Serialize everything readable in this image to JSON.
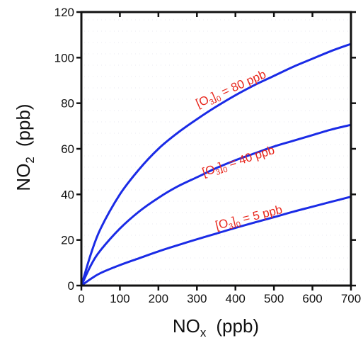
{
  "chart_data": {
    "type": "line",
    "xlabel": {
      "main": "NO",
      "sub": "x",
      "unit": "(ppb)"
    },
    "ylabel": {
      "main": "NO",
      "sub": "2",
      "unit": "(ppb)"
    },
    "xlim": [
      0,
      700
    ],
    "ylim": [
      0,
      120
    ],
    "x_ticks": [
      0,
      100,
      200,
      300,
      400,
      500,
      600,
      700
    ],
    "y_ticks": [
      0,
      20,
      40,
      60,
      80,
      100,
      120
    ],
    "grid": false,
    "series": [
      {
        "name": "[O3]0 = 80 ppb",
        "label_parts": {
          "open": "[O",
          "sub1": "3",
          "close": "]",
          "sub2": "0",
          "rest": " = 80 ppb"
        },
        "color": "#1a2be6",
        "x": [
          0,
          25,
          50,
          100,
          150,
          200,
          250,
          300,
          350,
          400,
          450,
          500,
          550,
          600,
          650,
          700
        ],
        "y": [
          0,
          14,
          25,
          40,
          51,
          60,
          67,
          73,
          78.5,
          83.5,
          88,
          92,
          96,
          99.5,
          103,
          106
        ]
      },
      {
        "name": "[O3]0 = 40 ppb",
        "label_parts": {
          "open": "[O",
          "sub1": "3",
          "close": "]",
          "sub2": "0",
          "rest": " = 40 ppb"
        },
        "color": "#1a2be6",
        "x": [
          0,
          25,
          50,
          100,
          150,
          200,
          250,
          300,
          350,
          400,
          450,
          500,
          550,
          600,
          650,
          700
        ],
        "y": [
          0,
          9,
          15.5,
          25,
          32.5,
          38.5,
          43.5,
          47.5,
          51.5,
          55,
          58,
          61,
          63.5,
          66,
          68.5,
          70.5
        ]
      },
      {
        "name": "[O3]0 = 5 ppb",
        "label_parts": {
          "open": "[O",
          "sub1": "3",
          "close": "]",
          "sub2": "0",
          "rest": " = 5 ppb"
        },
        "color": "#1a2be6",
        "x": [
          0,
          25,
          50,
          100,
          150,
          200,
          250,
          300,
          350,
          400,
          450,
          500,
          550,
          600,
          650,
          700
        ],
        "y": [
          0,
          3,
          5.5,
          9,
          12,
          15,
          17.7,
          20.3,
          22.8,
          25.3,
          27.7,
          30,
          32.4,
          34.6,
          36.8,
          39
        ]
      }
    ]
  }
}
